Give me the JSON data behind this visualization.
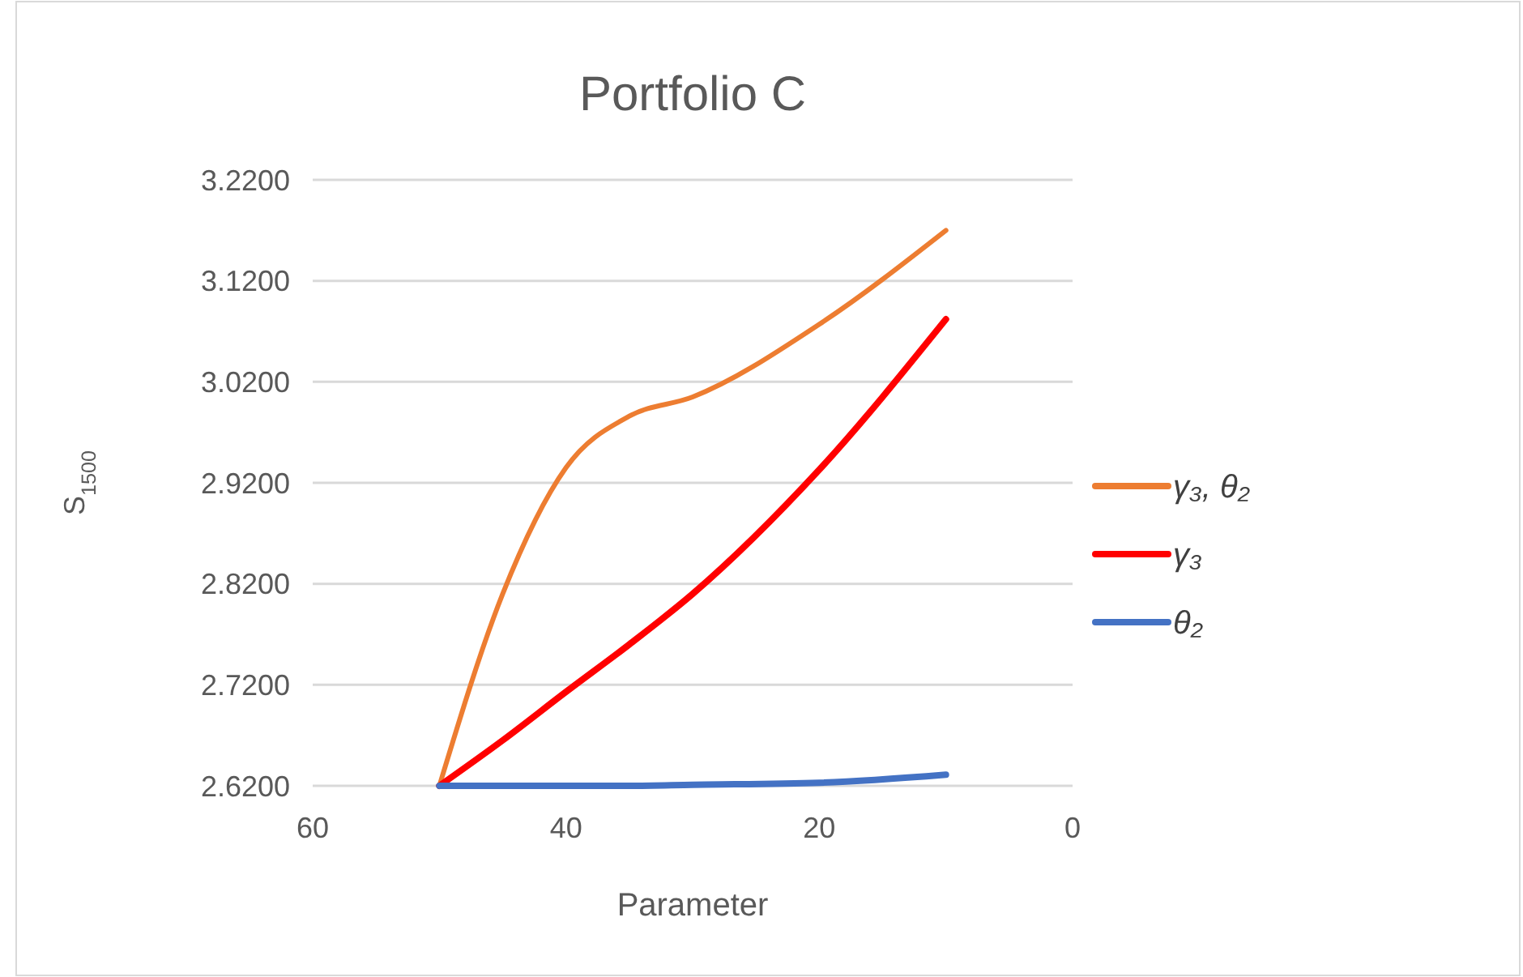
{
  "chart_data": {
    "type": "line",
    "title": "Portfolio C",
    "xlabel": "Parameter",
    "ylabel": "S$_{1500}$",
    "x": [
      50,
      45,
      40,
      35,
      30,
      20,
      10
    ],
    "series": [
      {
        "name": "γ₃, θ₂",
        "color": "#ed7d31",
        "values": [
          2.62,
          2.81,
          2.935,
          2.986,
          3.005,
          3.077,
          3.17
        ]
      },
      {
        "name": "γ₃",
        "color": "#ff0000",
        "values": [
          2.62,
          2.665,
          2.713,
          2.76,
          2.81,
          2.933,
          3.082
        ]
      },
      {
        "name": "θ₂",
        "color": "#4472c4",
        "values": [
          2.62,
          2.62,
          2.62,
          2.62,
          2.621,
          2.623,
          2.631
        ]
      }
    ],
    "xlim": [
      60,
      0
    ],
    "xticks": [
      60,
      40,
      20,
      0
    ],
    "ylim": [
      2.62,
      3.22
    ],
    "yticks": [
      {
        "value": 2.62,
        "label": "2.6200"
      },
      {
        "value": 2.72,
        "label": "2.7200"
      },
      {
        "value": 2.82,
        "label": "2.8200"
      },
      {
        "value": 2.92,
        "label": "2.9200"
      },
      {
        "value": 3.02,
        "label": "3.0200"
      },
      {
        "value": 3.12,
        "label": "3.1200"
      },
      {
        "value": 3.22,
        "label": "3.2200"
      }
    ],
    "grid": "y",
    "legend": "right",
    "marker": "none",
    "line_style": "solid"
  }
}
